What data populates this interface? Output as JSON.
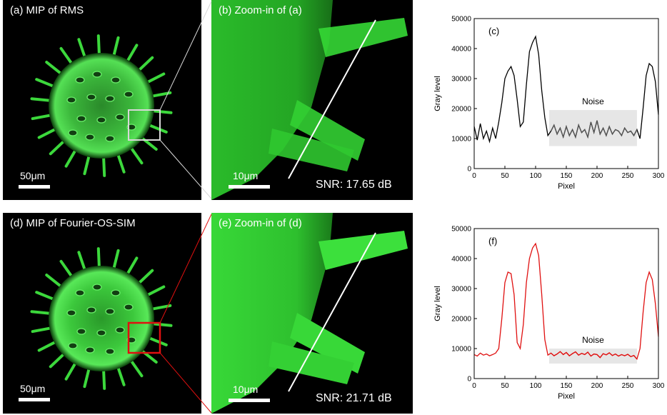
{
  "panels": {
    "a": {
      "label": "(a) MIP of RMS",
      "scale": "50μm"
    },
    "b": {
      "label": "(b) Zoom-in of (a)",
      "scale": "10μm",
      "snr": "SNR: 17.65 dB"
    },
    "d": {
      "label": "(d) MIP of Fourier-OS-SIM",
      "scale": "50μm"
    },
    "e": {
      "label": "(e) Zoom-in of (d)",
      "scale": "10μm",
      "snr": "SNR: 21.71 dB"
    }
  },
  "colors": {
    "roi_a": "#d8d8d8",
    "roi_d": "#e01010",
    "fluorescence": "#3cff3c"
  },
  "chart_data": [
    {
      "panel_label": "(c)",
      "type": "line",
      "xlabel": "Pixel",
      "ylabel": "Gray level",
      "xlim": [
        0,
        300
      ],
      "ylim": [
        0,
        50000
      ],
      "xticks": [
        0,
        50,
        100,
        150,
        200,
        250,
        300
      ],
      "yticks": [
        0,
        10000,
        20000,
        30000,
        40000,
        50000
      ],
      "grid": false,
      "line_color": "#000000",
      "noise_color": "#555555",
      "annotation": {
        "text": "Noise",
        "x0": 122,
        "x1": 265,
        "y0": 7500,
        "y1": 19500
      },
      "series": [
        {
          "x": [
            0,
            5,
            10,
            15,
            20,
            25,
            30,
            35,
            40,
            45,
            50,
            55,
            60,
            65,
            70,
            75,
            80,
            85,
            90,
            95,
            100,
            105,
            110,
            115,
            120,
            125,
            130,
            135,
            140,
            145,
            150,
            155,
            160,
            165,
            170,
            175,
            180,
            185,
            190,
            195,
            200,
            205,
            210,
            215,
            220,
            225,
            230,
            235,
            240,
            245,
            250,
            255,
            260,
            265,
            270,
            275,
            280,
            285,
            290,
            295,
            300
          ],
          "y": [
            14000,
            9500,
            15000,
            10000,
            12500,
            9000,
            13500,
            10000,
            15500,
            22000,
            30000,
            32500,
            34000,
            31000,
            23000,
            14000,
            15500,
            28000,
            39000,
            42000,
            44000,
            38000,
            26000,
            17000,
            11000,
            12500,
            14500,
            11500,
            13500,
            10500,
            14000,
            11000,
            13000,
            10500,
            14500,
            12000,
            13000,
            10500,
            15500,
            12000,
            16000,
            11500,
            13500,
            11000,
            14000,
            11500,
            13000,
            12500,
            11000,
            13500,
            12000,
            12500,
            11000,
            13000,
            10000,
            20000,
            31000,
            35000,
            34000,
            29000,
            18000
          ]
        }
      ]
    },
    {
      "panel_label": "(f)",
      "type": "line",
      "xlabel": "Pixel",
      "ylabel": "Gray level",
      "xlim": [
        0,
        300
      ],
      "ylim": [
        0,
        50000
      ],
      "xticks": [
        0,
        50,
        100,
        150,
        200,
        250,
        300
      ],
      "yticks": [
        0,
        10000,
        20000,
        30000,
        40000,
        50000
      ],
      "grid": false,
      "line_color": "#e01010",
      "noise_color": "#e01010",
      "annotation": {
        "text": "Noise",
        "x0": 122,
        "x1": 265,
        "y0": 5000,
        "y1": 10000
      },
      "series": [
        {
          "x": [
            0,
            5,
            10,
            15,
            20,
            25,
            30,
            35,
            40,
            45,
            50,
            55,
            60,
            65,
            70,
            75,
            80,
            85,
            90,
            95,
            100,
            105,
            110,
            115,
            120,
            125,
            130,
            135,
            140,
            145,
            150,
            155,
            160,
            165,
            170,
            175,
            180,
            185,
            190,
            195,
            200,
            205,
            210,
            215,
            220,
            225,
            230,
            235,
            240,
            245,
            250,
            255,
            260,
            265,
            270,
            275,
            280,
            285,
            290,
            295,
            300
          ],
          "y": [
            8000,
            7500,
            8500,
            7800,
            8200,
            7600,
            8000,
            8500,
            10000,
            20000,
            32000,
            35500,
            35000,
            28000,
            12000,
            10000,
            18000,
            32000,
            40000,
            43500,
            45000,
            41000,
            28000,
            13000,
            7800,
            8500,
            7600,
            8200,
            9000,
            8000,
            8700,
            7600,
            8300,
            8900,
            7800,
            8400,
            8000,
            8800,
            7500,
            8200,
            8000,
            7000,
            8300,
            7900,
            8600,
            7700,
            8200,
            7500,
            8000,
            7600,
            8100,
            7300,
            7700,
            6500,
            10000,
            22000,
            32000,
            35500,
            33000,
            25000,
            14000
          ]
        }
      ]
    }
  ]
}
